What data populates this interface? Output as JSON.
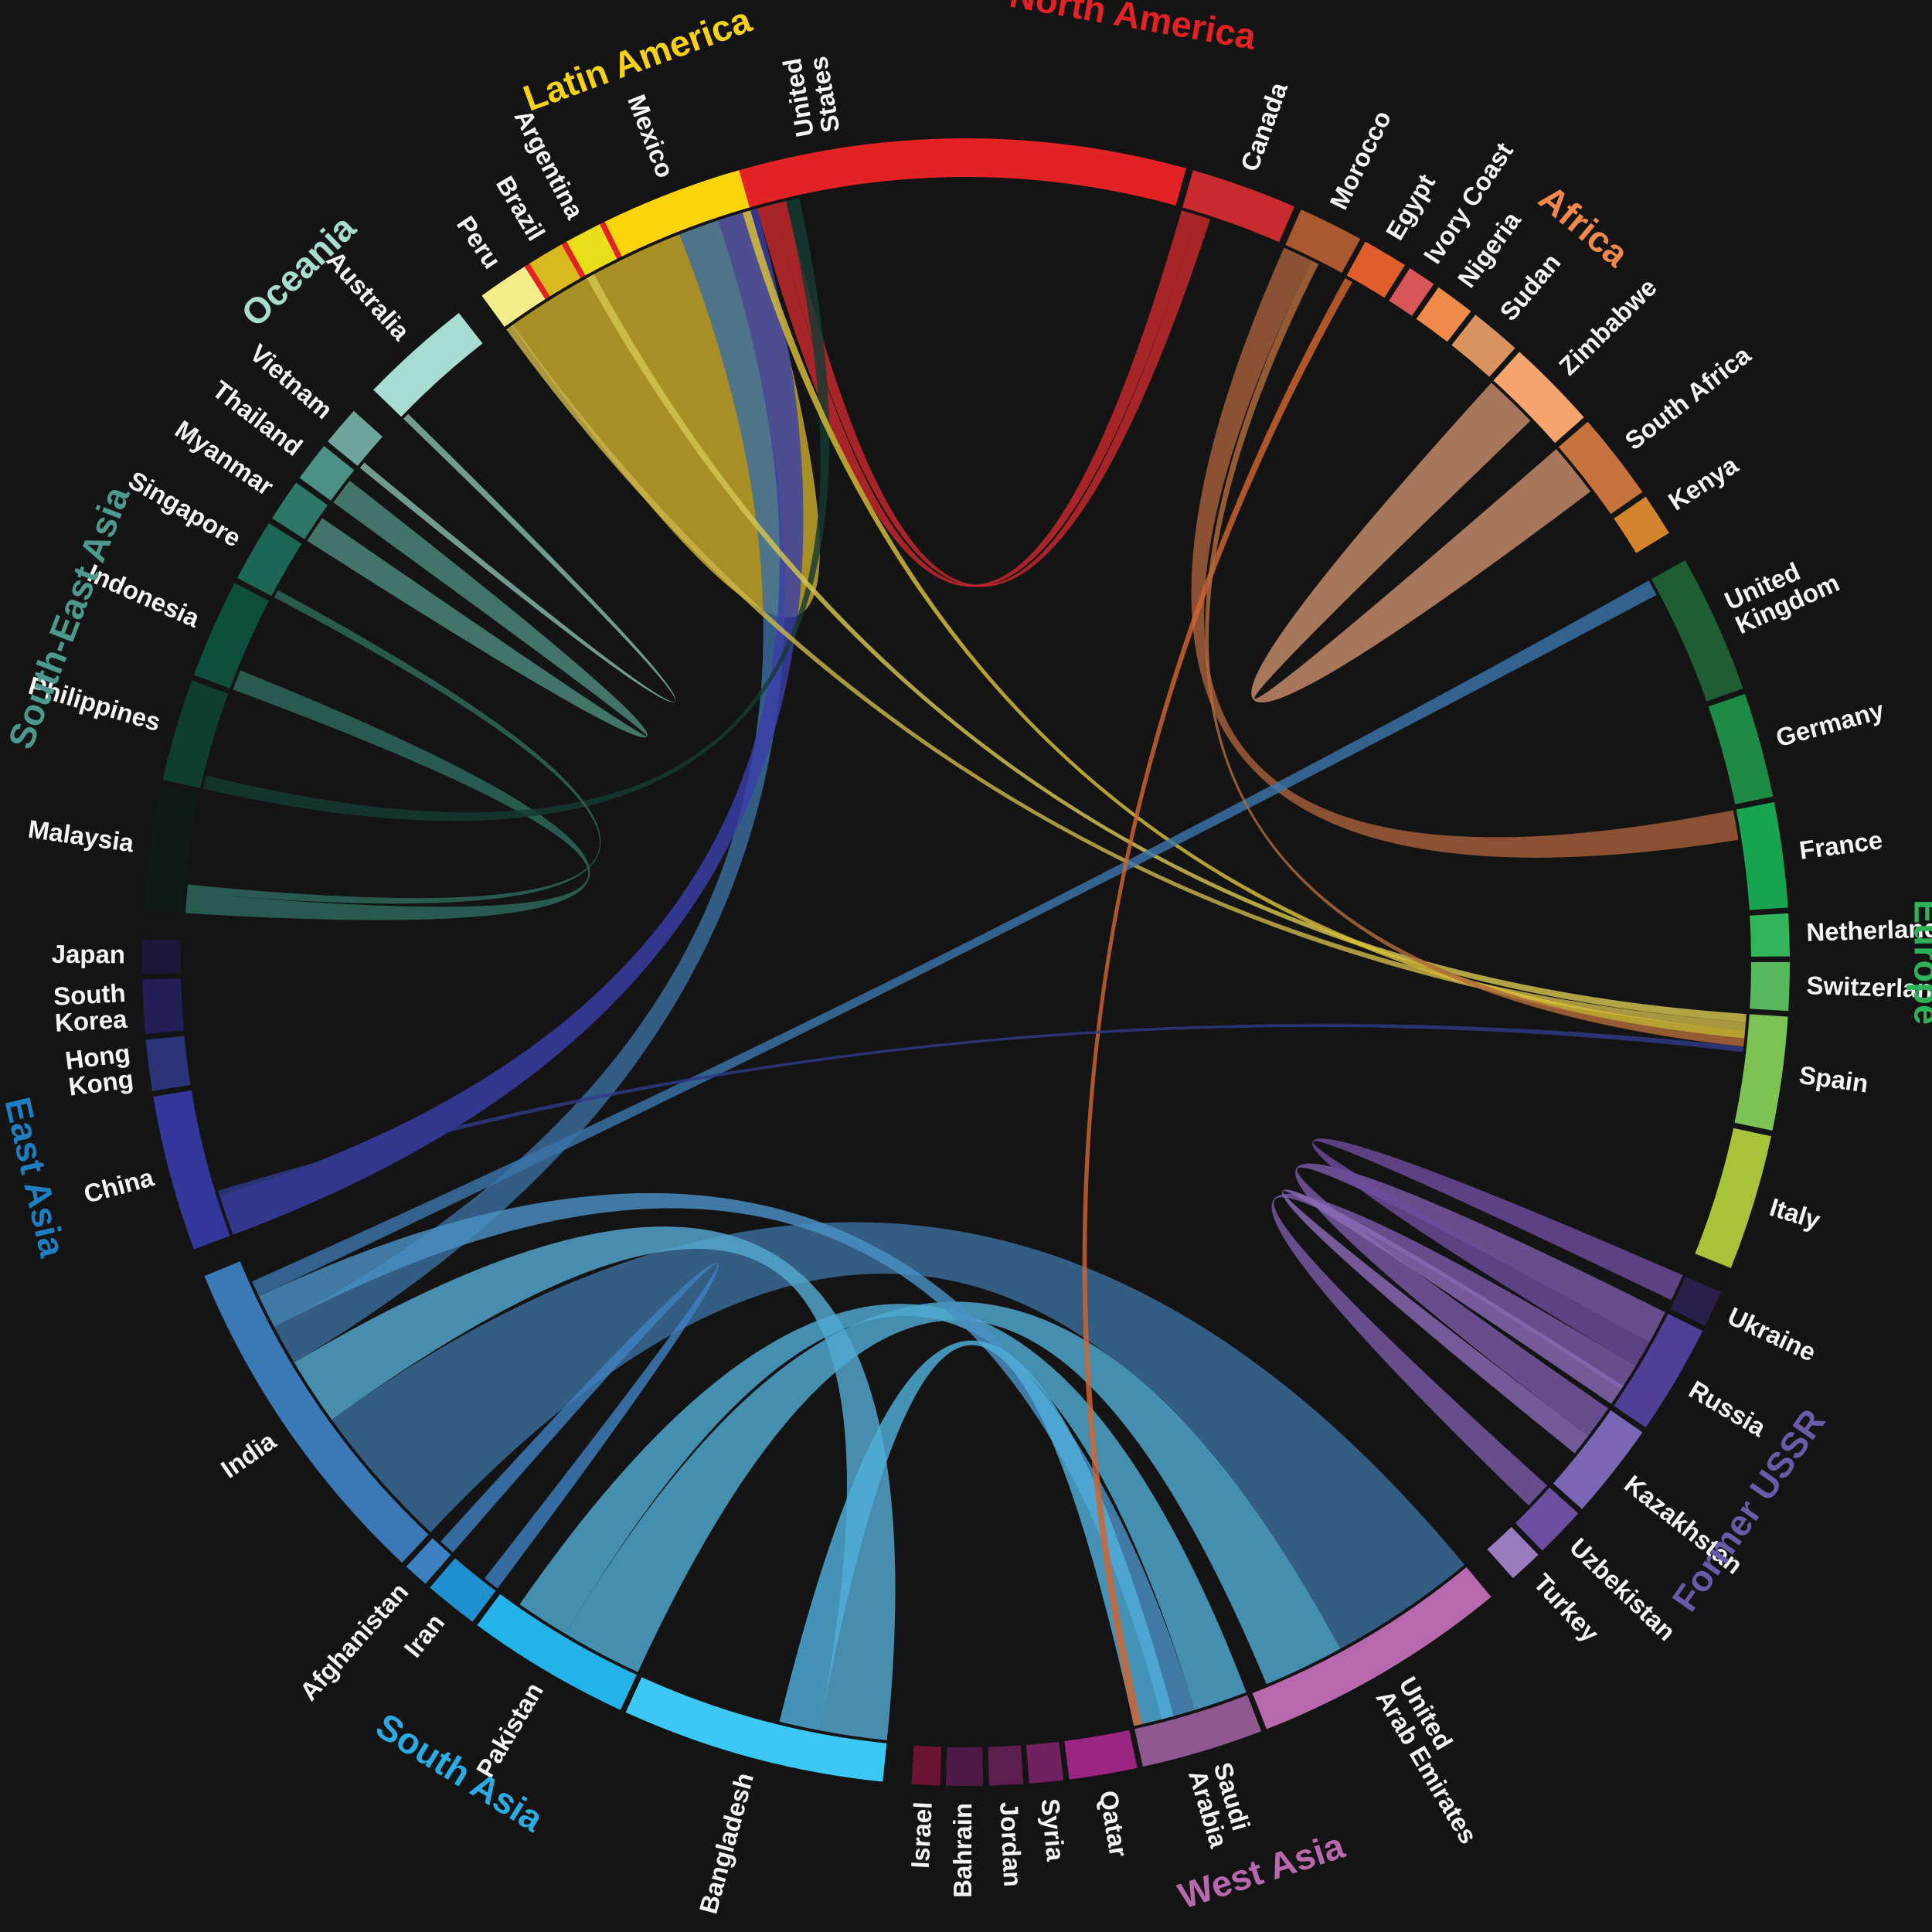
{
  "regions": [
    {
      "name": "North America",
      "color": "#e32226"
    },
    {
      "name": "Africa",
      "color": "#f2894a"
    },
    {
      "name": "Europe",
      "color": "#2fb257"
    },
    {
      "name": "Former USSR",
      "color": "#6a5aa8"
    },
    {
      "name": "West Asia",
      "color": "#b869ad"
    },
    {
      "name": "South Asia",
      "color": "#2aace2"
    },
    {
      "name": "East Asia",
      "color": "#1f7ec2"
    },
    {
      "name": "South-East Asia",
      "color": "#4c9a8e"
    },
    {
      "name": "Oceania",
      "color": "#a7dcd1"
    },
    {
      "name": "Latin America",
      "color": "#f7d117"
    }
  ],
  "countries": [
    {
      "name": "United States",
      "lines": [
        "United",
        "States"
      ],
      "region": "North America",
      "color": "#e32226"
    },
    {
      "name": "Canada",
      "lines": [
        "Canada"
      ],
      "region": "North America",
      "color": "#c82a2e"
    },
    {
      "name": "Morocco",
      "lines": [
        "Morocco"
      ],
      "region": "Africa",
      "color": "#a9582f"
    },
    {
      "name": "Egypt",
      "lines": [
        "Egypt"
      ],
      "region": "Africa",
      "color": "#e05e2c"
    },
    {
      "name": "Ivory Coast",
      "lines": [
        "Ivory Coast"
      ],
      "region": "Africa",
      "color": "#d85558"
    },
    {
      "name": "Nigeria",
      "lines": [
        "Nigeria"
      ],
      "region": "Africa",
      "color": "#f08a4a"
    },
    {
      "name": "Sudan",
      "lines": [
        "Sudan"
      ],
      "region": "Africa",
      "color": "#d9935e"
    },
    {
      "name": "Zimbabwe",
      "lines": [
        "Zimbabwe"
      ],
      "region": "Africa",
      "color": "#f5a46e"
    },
    {
      "name": "South Africa",
      "lines": [
        "South Africa"
      ],
      "region": "Africa",
      "color": "#c6733d"
    },
    {
      "name": "Kenya",
      "lines": [
        "Kenya"
      ],
      "region": "Africa",
      "color": "#d4842d"
    },
    {
      "name": "United Kingdom",
      "lines": [
        "United",
        "Kingdom"
      ],
      "region": "Europe",
      "color": "#1f5e33"
    },
    {
      "name": "Germany",
      "lines": [
        "Germany"
      ],
      "region": "Europe",
      "color": "#1e8a45"
    },
    {
      "name": "France",
      "lines": [
        "France"
      ],
      "region": "Europe",
      "color": "#17a551"
    },
    {
      "name": "Netherlands",
      "lines": [
        "Netherlands"
      ],
      "region": "Europe",
      "color": "#32b45a"
    },
    {
      "name": "Switzerland",
      "lines": [
        "Switzerland"
      ],
      "region": "Europe",
      "color": "#55b85c"
    },
    {
      "name": "Spain",
      "lines": [
        "Spain"
      ],
      "region": "Europe",
      "color": "#7cc353"
    },
    {
      "name": "Italy",
      "lines": [
        "Italy"
      ],
      "region": "Europe",
      "color": "#a8c23a"
    },
    {
      "name": "Ukraine",
      "lines": [
        "Ukraine"
      ],
      "region": "Former USSR",
      "color": "#2a1e4a"
    },
    {
      "name": "Russia",
      "lines": [
        "Russia"
      ],
      "region": "Former USSR",
      "color": "#4f3f96"
    },
    {
      "name": "Kazakhstan",
      "lines": [
        "Kazakhstan"
      ],
      "region": "Former USSR",
      "color": "#7966b4"
    },
    {
      "name": "Uzbekistan",
      "lines": [
        "Uzbekistan"
      ],
      "region": "Former USSR",
      "color": "#6c4ea0"
    },
    {
      "name": "Turkey",
      "lines": [
        "Turkey"
      ],
      "region": "Former USSR",
      "color": "#9c7cc0"
    },
    {
      "name": "United Arab Emirates",
      "lines": [
        "United",
        "Arab Emirates"
      ],
      "region": "West Asia",
      "color": "#b869ad"
    },
    {
      "name": "Saudi Arabia",
      "lines": [
        "Saudi",
        "Arabia"
      ],
      "region": "West Asia",
      "color": "#8f5890"
    },
    {
      "name": "Qatar",
      "lines": [
        "Qatar"
      ],
      "region": "West Asia",
      "color": "#9b2682"
    },
    {
      "name": "Syria",
      "lines": [
        "Syria"
      ],
      "region": "West Asia",
      "color": "#6f2160"
    },
    {
      "name": "Jordan",
      "lines": [
        "Jordan"
      ],
      "region": "West Asia",
      "color": "#5c1e4f"
    },
    {
      "name": "Bahrain",
      "lines": [
        "Bahrain"
      ],
      "region": "West Asia",
      "color": "#4d1a45"
    },
    {
      "name": "Israel",
      "lines": [
        "Israel"
      ],
      "region": "West Asia",
      "color": "#6b1434"
    },
    {
      "name": "Bangladesh",
      "lines": [
        "Bangladesh"
      ],
      "region": "South Asia",
      "color": "#3cc8f4"
    },
    {
      "name": "Pakistan",
      "lines": [
        "Pakistan"
      ],
      "region": "South Asia",
      "color": "#23b3e8"
    },
    {
      "name": "Iran",
      "lines": [
        "Iran"
      ],
      "region": "South Asia",
      "color": "#1f90cf"
    },
    {
      "name": "Afghanistan",
      "lines": [
        "Afghanistan"
      ],
      "region": "South Asia",
      "color": "#3c80c0"
    },
    {
      "name": "India",
      "lines": [
        "India"
      ],
      "region": "South Asia",
      "color": "#3b79b6"
    },
    {
      "name": "China",
      "lines": [
        "China"
      ],
      "region": "East Asia",
      "color": "#33379a"
    },
    {
      "name": "Hong Kong",
      "lines": [
        "Hong",
        "Kong"
      ],
      "region": "East Asia",
      "color": "#2c3477"
    },
    {
      "name": "South Korea",
      "lines": [
        "South",
        "Korea"
      ],
      "region": "East Asia",
      "color": "#231e55"
    },
    {
      "name": "Japan",
      "lines": [
        "Japan"
      ],
      "region": "East Asia",
      "color": "#1c1738"
    },
    {
      "name": "Malaysia",
      "lines": [
        "Malaysia"
      ],
      "region": "South-East Asia",
      "color": "#0e1a16"
    },
    {
      "name": "Philippines",
      "lines": [
        "Philippines"
      ],
      "region": "South-East Asia",
      "color": "#0f3d2e"
    },
    {
      "name": "Indonesia",
      "lines": [
        "Indonesia"
      ],
      "region": "South-East Asia",
      "color": "#0e4e3c"
    },
    {
      "name": "Singapore",
      "lines": [
        "Singapore"
      ],
      "region": "South-East Asia",
      "color": "#1d6653"
    },
    {
      "name": "Myanmar",
      "lines": [
        "Myanmar"
      ],
      "region": "South-East Asia",
      "color": "#2c7766"
    },
    {
      "name": "Thailand",
      "lines": [
        "Thailand"
      ],
      "region": "South-East Asia",
      "color": "#4c8f84"
    },
    {
      "name": "Vietnam",
      "lines": [
        "Vietnam"
      ],
      "region": "South-East Asia",
      "color": "#6ea69b"
    },
    {
      "name": "Australia",
      "lines": [
        "Australia"
      ],
      "region": "Oceania",
      "color": "#a7dcd1"
    },
    {
      "name": "Peru",
      "lines": [
        "Peru"
      ],
      "region": "Latin America",
      "color": "#f3ec8a"
    },
    {
      "name": "Brazil",
      "lines": [
        "Brazil"
      ],
      "region": "Latin America",
      "color": "#d8ba1e"
    },
    {
      "name": "Argentina",
      "lines": [
        "Argentina"
      ],
      "region": "Latin America",
      "color": "#e8df1a"
    },
    {
      "name": "Mexico",
      "lines": [
        "Mexico"
      ],
      "region": "Latin America",
      "color": "#fbd50b"
    }
  ],
  "flows": [
    {
      "from": "Mexico",
      "to": "United States",
      "color": "#c8ab2a"
    },
    {
      "from": "India",
      "to": "United Arab Emirates",
      "color": "#3b6e9c"
    },
    {
      "from": "Bangladesh",
      "to": "India",
      "color": "#54a8cf"
    },
    {
      "from": "Pakistan",
      "to": "United Arab Emirates",
      "color": "#4fa9d2"
    },
    {
      "from": "Pakistan",
      "to": "Saudi Arabia",
      "color": "#4fa9d2"
    },
    {
      "from": "India",
      "to": "United States",
      "color": "#3c6ea0"
    },
    {
      "from": "China",
      "to": "United States",
      "color": "#3a3ea8"
    },
    {
      "from": "India",
      "to": "Saudi Arabia",
      "color": "#4a90c4"
    },
    {
      "from": "Bangladesh",
      "to": "Saudi Arabia",
      "color": "#4fb0da"
    },
    {
      "from": "Afghanistan",
      "to": "Iran",
      "color": "#3e7fc0"
    },
    {
      "from": "Russia",
      "to": "Kazakhstan",
      "color": "#7a5aa6"
    },
    {
      "from": "Ukraine",
      "to": "Russia",
      "color": "#6c4c9c"
    },
    {
      "from": "Uzbekistan",
      "to": "Russia",
      "color": "#7a5aa6"
    },
    {
      "from": "Kazakhstan",
      "to": "Russia",
      "color": "#8a6ab6"
    },
    {
      "from": "Canada",
      "to": "United States",
      "color": "#c82a2e"
    },
    {
      "from": "United States",
      "to": "Canada",
      "color": "#c82a2e"
    },
    {
      "from": "Morocco",
      "to": "France",
      "color": "#a5603a"
    },
    {
      "from": "Zimbabwe",
      "to": "South Africa",
      "color": "#c98c6a"
    },
    {
      "from": "Myanmar",
      "to": "Thailand",
      "color": "#4e8a7e"
    },
    {
      "from": "Indonesia",
      "to": "Malaysia",
      "color": "#2e6a5e"
    },
    {
      "from": "Philippines",
      "to": "United States",
      "color": "#153a32"
    },
    {
      "from": "Argentina",
      "to": "Spain",
      "color": "#d3c451"
    },
    {
      "from": "Peru",
      "to": "Spain",
      "color": "#cbb44a"
    },
    {
      "from": "Mexico",
      "to": "Spain",
      "color": "#d9c038"
    },
    {
      "from": "India",
      "to": "United Kingdom",
      "color": "#3a74aa"
    },
    {
      "from": "Egypt",
      "to": "Saudi Arabia",
      "color": "#d26430"
    },
    {
      "from": "Morocco",
      "to": "Spain",
      "color": "#b06a3c"
    },
    {
      "from": "China",
      "to": "Spain",
      "color": "#2f3a88"
    },
    {
      "from": "Malaysia",
      "to": "Singapore",
      "color": "#2e6a5e"
    },
    {
      "from": "Australia",
      "to": "Vietnam",
      "color": "#86b9ad"
    }
  ]
}
